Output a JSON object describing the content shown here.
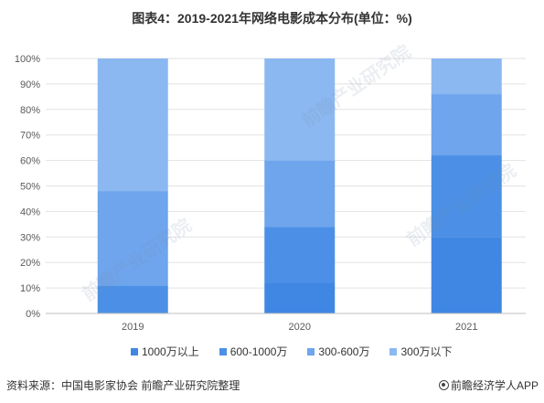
{
  "chart_data": {
    "type": "bar",
    "stacked": true,
    "title": "图表4：2019-2021年网络电影成本分布(单位：%)",
    "categories": [
      "2019",
      "2020",
      "2021"
    ],
    "series": [
      {
        "name": "1000万以上",
        "values": [
          0,
          12,
          30
        ],
        "color": "#3f87e3"
      },
      {
        "name": "600-1000万",
        "values": [
          11,
          22,
          32
        ],
        "color": "#4b90e6"
      },
      {
        "name": "300-600万",
        "values": [
          37,
          26,
          24
        ],
        "color": "#6ea5ed"
      },
      {
        "name": "300万以下",
        "values": [
          52,
          40,
          14
        ],
        "color": "#8bb8f1"
      }
    ],
    "ylim": [
      0,
      100
    ],
    "yticks": [
      "0%",
      "10%",
      "20%",
      "30%",
      "40%",
      "50%",
      "60%",
      "70%",
      "80%",
      "90%",
      "100%"
    ],
    "grid": true,
    "legend": "bottom"
  },
  "footer": {
    "source": "资料来源：中国电影家协会 前瞻产业研究院整理",
    "brand": "前瞻经济学人APP",
    "brand_icon": "qianzhan-logo-icon"
  },
  "watermark": {
    "text": "前瞻产业研究院"
  }
}
